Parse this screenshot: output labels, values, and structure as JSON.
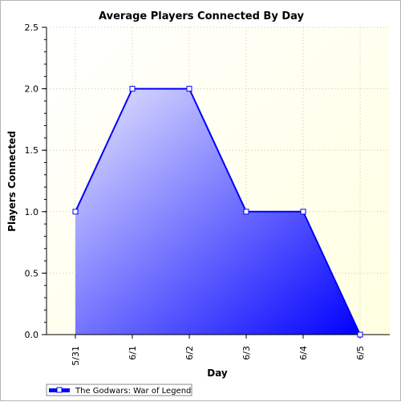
{
  "chart_data": {
    "type": "area",
    "title": "Average Players Connected By Day",
    "xlabel": "Day",
    "ylabel": "Players Connected",
    "categories": [
      "5/31",
      "6/1",
      "6/2",
      "6/3",
      "6/4",
      "6/5"
    ],
    "series": [
      {
        "name": "The Godwars: War of Legend",
        "values": [
          1,
          2,
          2,
          1,
          1,
          0
        ]
      }
    ],
    "ylim": [
      0,
      2.5
    ],
    "yticks": [
      0.0,
      0.5,
      1.0,
      1.5,
      2.0,
      2.5
    ],
    "ytick_labels": [
      "0.0",
      "0.5",
      "1.0",
      "1.5",
      "2.0",
      "2.5"
    ],
    "grid": true,
    "legend_position": "bottom-left",
    "colors": {
      "plot_background_start": "#ffffff",
      "plot_background_end": "#ffffe0",
      "area_start": "#e8e8ff",
      "area_end": "#0000ff",
      "line": "#0000ff",
      "marker_fill": "#ffffff",
      "grid": "#c8c8a0"
    }
  }
}
